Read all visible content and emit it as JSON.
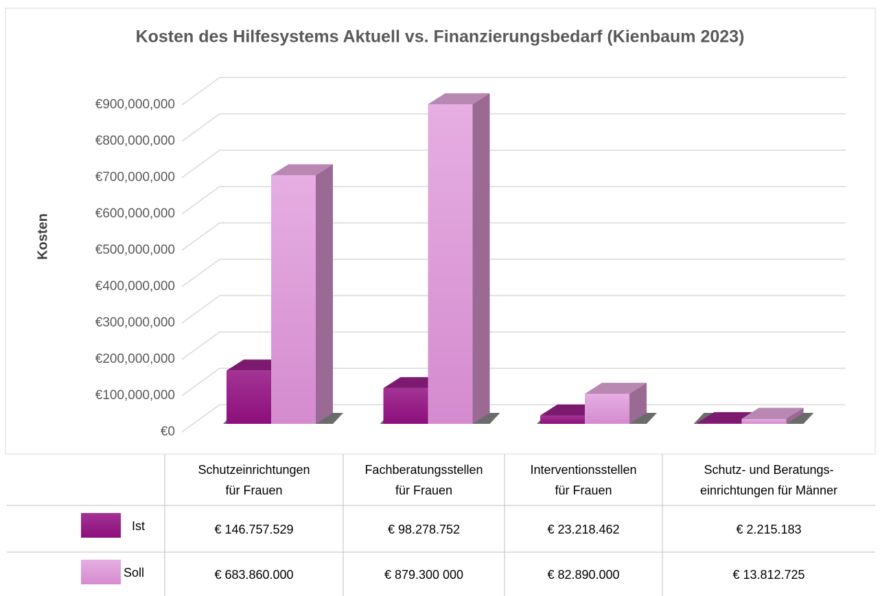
{
  "chart_data": {
    "type": "bar3d",
    "title": "Kosten des Hilfesystems Aktuell vs. Finanzierungsbedarf (Kienbaum 2023)",
    "y_label": "Kosten",
    "categories": [
      "Schutzeinrichtungen\nfür Frauen",
      "Fachberatungsstellen\nfür Frauen",
      "Interventionsstellen\nfür Frauen",
      "Schutz- und Beratungs-\neinrichtungen für Männer"
    ],
    "series": [
      {
        "name": "Ist",
        "color": "#961c86",
        "values": [
          146757529,
          98278752,
          23218462,
          2215183
        ],
        "value_labels": [
          "€ 146.757.529",
          "€ 98.278.752",
          "€ 23.218.462",
          "€ 2.215.183"
        ]
      },
      {
        "name": "Soll",
        "color": "#e2a5de",
        "values": [
          683860000,
          879300000,
          82890000,
          13812725
        ],
        "value_labels": [
          "€ 683.860.000",
          "€ 879.300 000",
          "€ 82.890.000",
          "€ 13.812.725"
        ]
      }
    ],
    "ylim": [
      0,
      900000000
    ],
    "yticks": [
      {
        "value": 0,
        "label": "€0"
      },
      {
        "value": 100000000,
        "label": "€100,000,000"
      },
      {
        "value": 200000000,
        "label": "€200,000,000"
      },
      {
        "value": 300000000,
        "label": "€300,000,000"
      },
      {
        "value": 400000000,
        "label": "€400,000,000"
      },
      {
        "value": 500000000,
        "label": "€500,000,000"
      },
      {
        "value": 600000000,
        "label": "€600,000,000"
      },
      {
        "value": 700000000,
        "label": "€700,000,000"
      },
      {
        "value": 800000000,
        "label": "€800,000,000"
      },
      {
        "value": 900000000,
        "label": "€900,000,000"
      }
    ],
    "grid": true
  }
}
